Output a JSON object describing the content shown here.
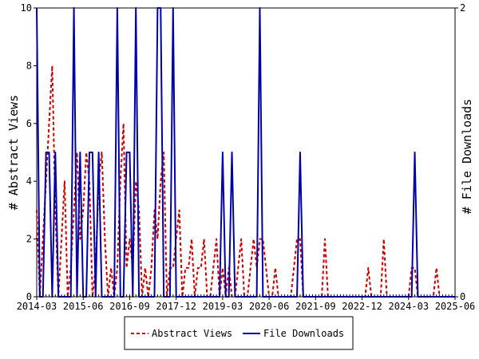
{
  "chart_data": {
    "type": "line",
    "title": "",
    "y_left_label": "# Abstract Views",
    "y_right_label": "# File Downloads",
    "y_left_lim": [
      0,
      10
    ],
    "y_right_lim": [
      0,
      2
    ],
    "y_left_ticks": [
      "0",
      "2",
      "4",
      "6",
      "8",
      "10"
    ],
    "y_right_ticks": [
      "0",
      "2"
    ],
    "x_ticks": [
      "2014-03",
      "2015-06",
      "2016-09",
      "2017-12",
      "2019-03",
      "2020-06",
      "2021-09",
      "2022-12",
      "2024-03",
      "2025-06"
    ],
    "x_range": [
      "2014-03",
      "2025-06"
    ],
    "grid": false,
    "legend_position": "bottom",
    "series": [
      {
        "name": "Abstract Views",
        "axis": "left",
        "color": "#cc0000",
        "style": "dashed",
        "points": [
          [
            "2014-03",
            3
          ],
          [
            "2014-04",
            0
          ],
          [
            "2014-05",
            2
          ],
          [
            "2014-06",
            4
          ],
          [
            "2014-07",
            6
          ],
          [
            "2014-08",
            8
          ],
          [
            "2014-09",
            3
          ],
          [
            "2014-10",
            0
          ],
          [
            "2014-11",
            2
          ],
          [
            "2014-12",
            4
          ],
          [
            "2015-01",
            0
          ],
          [
            "2015-02",
            1
          ],
          [
            "2015-03",
            3
          ],
          [
            "2015-04",
            5
          ],
          [
            "2015-05",
            2
          ],
          [
            "2015-06",
            3
          ],
          [
            "2015-07",
            5
          ],
          [
            "2015-08",
            4
          ],
          [
            "2015-09",
            0
          ],
          [
            "2015-10",
            1
          ],
          [
            "2015-11",
            4
          ],
          [
            "2015-12",
            5
          ],
          [
            "2016-01",
            2
          ],
          [
            "2016-02",
            0
          ],
          [
            "2016-03",
            1
          ],
          [
            "2016-04",
            0
          ],
          [
            "2016-05",
            1
          ],
          [
            "2016-06",
            4
          ],
          [
            "2016-07",
            6
          ],
          [
            "2016-08",
            1
          ],
          [
            "2016-09",
            2
          ],
          [
            "2016-10",
            1
          ],
          [
            "2016-11",
            4
          ],
          [
            "2016-12",
            3
          ],
          [
            "2017-01",
            0
          ],
          [
            "2017-02",
            1
          ],
          [
            "2017-03",
            0
          ],
          [
            "2017-04",
            1
          ],
          [
            "2017-05",
            3
          ],
          [
            "2017-06",
            2
          ],
          [
            "2017-07",
            4
          ],
          [
            "2017-08",
            5
          ],
          [
            "2017-09",
            0
          ],
          [
            "2017-10",
            1
          ],
          [
            "2017-11",
            1
          ],
          [
            "2017-12",
            2
          ],
          [
            "2018-01",
            3
          ],
          [
            "2018-02",
            0
          ],
          [
            "2018-03",
            1
          ],
          [
            "2018-04",
            1
          ],
          [
            "2018-05",
            2
          ],
          [
            "2018-06",
            0
          ],
          [
            "2018-07",
            1
          ],
          [
            "2018-08",
            1
          ],
          [
            "2018-09",
            2
          ],
          [
            "2018-10",
            0
          ],
          [
            "2018-11",
            0
          ],
          [
            "2018-12",
            1
          ],
          [
            "2019-01",
            2
          ],
          [
            "2019-02",
            0
          ],
          [
            "2019-03",
            1
          ],
          [
            "2019-04",
            0
          ],
          [
            "2019-05",
            1
          ],
          [
            "2019-06",
            0
          ],
          [
            "2019-07",
            0
          ],
          [
            "2019-08",
            1
          ],
          [
            "2019-09",
            2
          ],
          [
            "2019-10",
            0
          ],
          [
            "2019-11",
            0
          ],
          [
            "2019-12",
            1
          ],
          [
            "2020-01",
            2
          ],
          [
            "2020-02",
            1
          ],
          [
            "2020-03",
            2
          ],
          [
            "2020-04",
            2
          ],
          [
            "2020-05",
            1
          ],
          [
            "2020-06",
            0
          ],
          [
            "2020-07",
            0
          ],
          [
            "2020-08",
            1
          ],
          [
            "2020-09",
            0
          ],
          [
            "2020-10",
            0
          ],
          [
            "2020-11",
            0
          ],
          [
            "2020-12",
            0
          ],
          [
            "2021-01",
            0
          ],
          [
            "2021-02",
            1
          ],
          [
            "2021-03",
            2
          ],
          [
            "2021-04",
            2
          ],
          [
            "2021-05",
            0
          ],
          [
            "2021-06",
            0
          ],
          [
            "2021-07",
            0
          ],
          [
            "2021-08",
            0
          ],
          [
            "2021-09",
            0
          ],
          [
            "2021-10",
            0
          ],
          [
            "2021-11",
            0
          ],
          [
            "2021-12",
            2
          ],
          [
            "2022-01",
            0
          ],
          [
            "2022-02",
            0
          ],
          [
            "2022-03",
            0
          ],
          [
            "2022-04",
            0
          ],
          [
            "2022-05",
            0
          ],
          [
            "2022-06",
            0
          ],
          [
            "2022-07",
            0
          ],
          [
            "2022-08",
            0
          ],
          [
            "2022-09",
            0
          ],
          [
            "2022-10",
            0
          ],
          [
            "2022-11",
            0
          ],
          [
            "2022-12",
            0
          ],
          [
            "2023-01",
            0
          ],
          [
            "2023-02",
            1
          ],
          [
            "2023-03",
            0
          ],
          [
            "2023-04",
            0
          ],
          [
            "2023-05",
            0
          ],
          [
            "2023-06",
            0
          ],
          [
            "2023-07",
            2
          ],
          [
            "2023-08",
            0
          ],
          [
            "2023-09",
            0
          ],
          [
            "2023-10",
            0
          ],
          [
            "2023-11",
            0
          ],
          [
            "2023-12",
            0
          ],
          [
            "2024-01",
            0
          ],
          [
            "2024-02",
            0
          ],
          [
            "2024-03",
            0
          ],
          [
            "2024-04",
            1
          ],
          [
            "2024-05",
            1
          ],
          [
            "2024-06",
            0
          ],
          [
            "2024-07",
            0
          ],
          [
            "2024-08",
            0
          ],
          [
            "2024-09",
            0
          ],
          [
            "2024-10",
            0
          ],
          [
            "2024-11",
            0
          ],
          [
            "2024-12",
            1
          ],
          [
            "2025-01",
            0
          ],
          [
            "2025-02",
            0
          ],
          [
            "2025-03",
            0
          ],
          [
            "2025-04",
            0
          ],
          [
            "2025-05",
            0
          ],
          [
            "2025-06",
            0
          ]
        ]
      },
      {
        "name": "File Downloads",
        "axis": "right",
        "color": "#0000aa",
        "style": "solid",
        "points": [
          [
            "2014-03",
            2
          ],
          [
            "2014-04",
            0
          ],
          [
            "2014-05",
            0
          ],
          [
            "2014-06",
            1
          ],
          [
            "2014-07",
            1
          ],
          [
            "2014-08",
            0
          ],
          [
            "2014-09",
            1
          ],
          [
            "2014-10",
            0
          ],
          [
            "2014-11",
            0
          ],
          [
            "2014-12",
            0
          ],
          [
            "2015-01",
            0
          ],
          [
            "2015-02",
            0
          ],
          [
            "2015-03",
            2
          ],
          [
            "2015-04",
            0
          ],
          [
            "2015-05",
            1
          ],
          [
            "2015-06",
            0
          ],
          [
            "2015-07",
            0
          ],
          [
            "2015-08",
            1
          ],
          [
            "2015-09",
            1
          ],
          [
            "2015-10",
            0
          ],
          [
            "2015-11",
            1
          ],
          [
            "2015-12",
            0
          ],
          [
            "2016-01",
            0
          ],
          [
            "2016-02",
            0
          ],
          [
            "2016-03",
            0
          ],
          [
            "2016-04",
            0
          ],
          [
            "2016-05",
            2
          ],
          [
            "2016-06",
            0
          ],
          [
            "2016-07",
            0
          ],
          [
            "2016-08",
            1
          ],
          [
            "2016-09",
            1
          ],
          [
            "2016-10",
            0
          ],
          [
            "2016-11",
            2
          ],
          [
            "2016-12",
            0
          ],
          [
            "2017-01",
            0
          ],
          [
            "2017-02",
            0
          ],
          [
            "2017-03",
            0
          ],
          [
            "2017-04",
            0
          ],
          [
            "2017-05",
            0
          ],
          [
            "2017-06",
            2
          ],
          [
            "2017-07",
            2
          ],
          [
            "2017-08",
            0
          ],
          [
            "2017-09",
            0
          ],
          [
            "2017-10",
            0
          ],
          [
            "2017-11",
            2
          ],
          [
            "2017-12",
            0
          ],
          [
            "2018-01",
            0
          ],
          [
            "2018-02",
            0
          ],
          [
            "2018-03",
            0
          ],
          [
            "2018-04",
            0
          ],
          [
            "2018-05",
            0
          ],
          [
            "2018-06",
            0
          ],
          [
            "2018-07",
            0
          ],
          [
            "2018-08",
            0
          ],
          [
            "2018-09",
            0
          ],
          [
            "2018-10",
            0
          ],
          [
            "2018-11",
            0
          ],
          [
            "2018-12",
            0
          ],
          [
            "2019-01",
            0
          ],
          [
            "2019-02",
            0
          ],
          [
            "2019-03",
            1
          ],
          [
            "2019-04",
            0
          ],
          [
            "2019-05",
            0
          ],
          [
            "2019-06",
            1
          ],
          [
            "2019-07",
            0
          ],
          [
            "2019-08",
            0
          ],
          [
            "2019-09",
            0
          ],
          [
            "2019-10",
            0
          ],
          [
            "2019-11",
            0
          ],
          [
            "2019-12",
            0
          ],
          [
            "2020-01",
            0
          ],
          [
            "2020-02",
            0
          ],
          [
            "2020-03",
            2
          ],
          [
            "2020-04",
            0
          ],
          [
            "2020-05",
            0
          ],
          [
            "2020-06",
            0
          ],
          [
            "2020-07",
            0
          ],
          [
            "2020-08",
            0
          ],
          [
            "2020-09",
            0
          ],
          [
            "2020-10",
            0
          ],
          [
            "2020-11",
            0
          ],
          [
            "2020-12",
            0
          ],
          [
            "2021-01",
            0
          ],
          [
            "2021-02",
            0
          ],
          [
            "2021-03",
            0
          ],
          [
            "2021-04",
            1
          ],
          [
            "2021-05",
            0
          ],
          [
            "2021-06",
            0
          ],
          [
            "2021-07",
            0
          ],
          [
            "2021-08",
            0
          ],
          [
            "2021-09",
            0
          ],
          [
            "2021-10",
            0
          ],
          [
            "2021-11",
            0
          ],
          [
            "2021-12",
            0
          ],
          [
            "2022-01",
            0
          ],
          [
            "2022-02",
            0
          ],
          [
            "2022-03",
            0
          ],
          [
            "2022-04",
            0
          ],
          [
            "2022-05",
            0
          ],
          [
            "2022-06",
            0
          ],
          [
            "2022-07",
            0
          ],
          [
            "2022-08",
            0
          ],
          [
            "2022-09",
            0
          ],
          [
            "2022-10",
            0
          ],
          [
            "2022-11",
            0
          ],
          [
            "2022-12",
            0
          ],
          [
            "2023-01",
            0
          ],
          [
            "2023-02",
            0
          ],
          [
            "2023-03",
            0
          ],
          [
            "2023-04",
            0
          ],
          [
            "2023-05",
            0
          ],
          [
            "2023-06",
            0
          ],
          [
            "2023-07",
            0
          ],
          [
            "2023-08",
            0
          ],
          [
            "2023-09",
            0
          ],
          [
            "2023-10",
            0
          ],
          [
            "2023-11",
            0
          ],
          [
            "2023-12",
            0
          ],
          [
            "2024-01",
            0
          ],
          [
            "2024-02",
            0
          ],
          [
            "2024-03",
            0
          ],
          [
            "2024-04",
            0
          ],
          [
            "2024-05",
            1
          ],
          [
            "2024-06",
            0
          ],
          [
            "2024-07",
            0
          ],
          [
            "2024-08",
            0
          ],
          [
            "2024-09",
            0
          ],
          [
            "2024-10",
            0
          ],
          [
            "2024-11",
            0
          ],
          [
            "2024-12",
            0
          ],
          [
            "2025-01",
            0
          ],
          [
            "2025-02",
            0
          ],
          [
            "2025-03",
            0
          ],
          [
            "2025-04",
            0
          ],
          [
            "2025-05",
            0
          ],
          [
            "2025-06",
            0
          ]
        ]
      }
    ]
  },
  "legend": {
    "views_label": "Abstract Views",
    "downloads_label": "File Downloads"
  }
}
